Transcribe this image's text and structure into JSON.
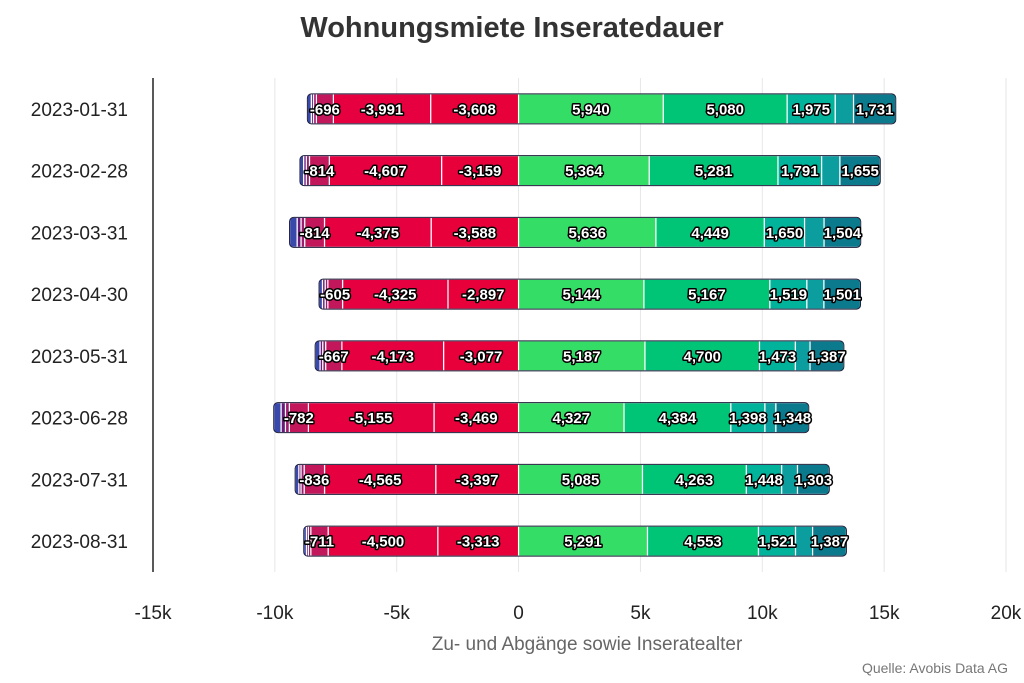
{
  "chart_data": {
    "type": "bar",
    "orientation": "horizontal",
    "stacked": "diverging",
    "title": "Wohnungsmiete Inseratedauer",
    "xlabel": "Zu- und Abgänge sowie Inseratealter",
    "ylabel": "",
    "source": "Quelle: Avobis Data AG",
    "xlim": [
      -15000,
      20000
    ],
    "x_ticks": [
      -15000,
      -10000,
      -5000,
      0,
      5000,
      10000,
      15000,
      20000
    ],
    "x_tick_labels": [
      "-15k",
      "-10k",
      "-5k",
      "0",
      "5k",
      "10k",
      "15k",
      "20k"
    ],
    "grid": "vertical",
    "categories": [
      "2023-01-31",
      "2023-02-28",
      "2023-03-31",
      "2023-04-30",
      "2023-05-31",
      "2023-06-28",
      "2023-07-31",
      "2023-08-31"
    ],
    "negative_series": [
      {
        "color": "#e8003a",
        "labeled": true,
        "values": [
          -3608,
          -3159,
          -3588,
          -2897,
          -3077,
          -3469,
          -3397,
          -3313
        ]
      },
      {
        "color": "#e60040",
        "labeled": true,
        "values": [
          -3991,
          -4607,
          -4375,
          -4325,
          -4173,
          -5155,
          -4565,
          -4500
        ]
      },
      {
        "color": "#c2185b",
        "labeled": true,
        "values": [
          -696,
          -814,
          -814,
          -605,
          -667,
          -782,
          -836,
          -711
        ]
      },
      {
        "color": "#9c1d6e",
        "labeled": false,
        "values": [
          -120,
          -130,
          -150,
          -110,
          -120,
          -160,
          -130,
          -100
        ]
      },
      {
        "color": "#6a1b7a",
        "labeled": false,
        "values": [
          -90,
          -110,
          -160,
          -110,
          -110,
          -180,
          -90,
          -80
        ]
      },
      {
        "color": "#3949ab",
        "labeled": false,
        "values": [
          -160,
          -150,
          -310,
          -140,
          -200,
          -300,
          -150,
          -110
        ]
      }
    ],
    "positive_series": [
      {
        "color": "#33dd66",
        "labeled": true,
        "values": [
          5940,
          5364,
          5636,
          5144,
          5187,
          4327,
          5085,
          5291
        ]
      },
      {
        "color": "#00c476",
        "labeled": true,
        "values": [
          5080,
          5281,
          4449,
          5167,
          4700,
          4384,
          4263,
          4553
        ]
      },
      {
        "color": "#00b39a",
        "labeled": true,
        "values": [
          1975,
          1791,
          1650,
          1519,
          1473,
          1398,
          1448,
          1521
        ]
      },
      {
        "color": "#0c9e9e",
        "labeled": false,
        "values": [
          750,
          750,
          800,
          700,
          600,
          450,
          650,
          700
        ]
      },
      {
        "color": "#0b7a8c",
        "labeled": true,
        "values": [
          1731,
          1655,
          1504,
          1501,
          1387,
          1348,
          1303,
          1387
        ]
      }
    ]
  }
}
